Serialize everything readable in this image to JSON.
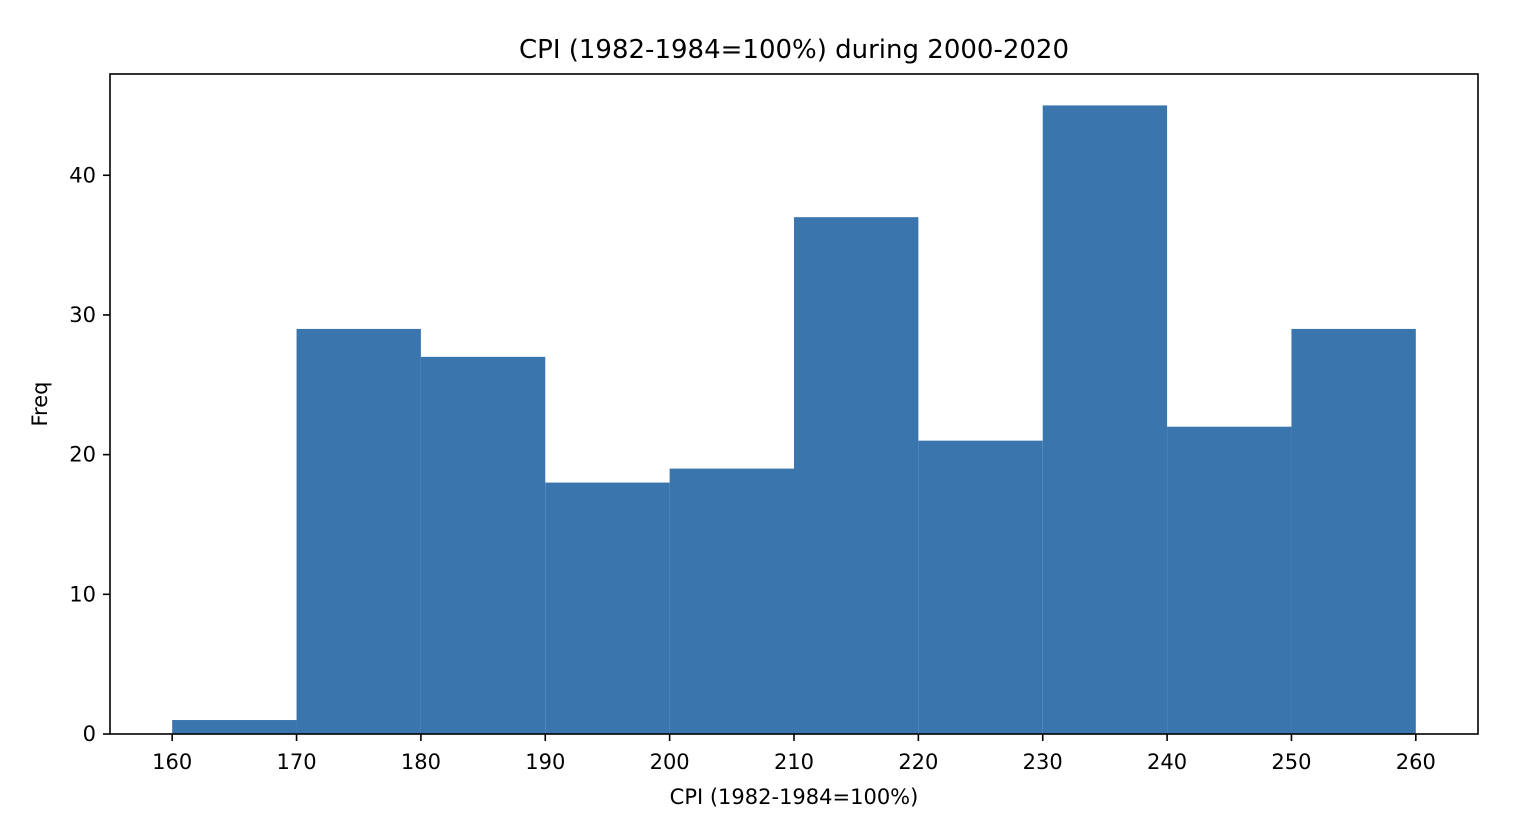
{
  "chart_data": {
    "type": "bar",
    "title": "CPI (1982-1984=100%) during 2000-2020",
    "xlabel": "CPI (1982-1984=100%)",
    "ylabel": "Freq",
    "bin_edges": [
      160,
      170,
      180,
      190,
      200,
      210,
      220,
      230,
      240,
      250,
      260
    ],
    "values": [
      1,
      29,
      27,
      18,
      19,
      37,
      21,
      45,
      22,
      29
    ],
    "xlim": [
      155,
      265
    ],
    "ylim": [
      0,
      47.25
    ],
    "x_ticks": [
      "160",
      "170",
      "180",
      "190",
      "200",
      "210",
      "220",
      "230",
      "240",
      "250",
      "260"
    ],
    "y_ticks": [
      "0",
      "10",
      "20",
      "30",
      "40"
    ],
    "bar_color": "#3a75ae",
    "grid": false,
    "legend": "none"
  }
}
